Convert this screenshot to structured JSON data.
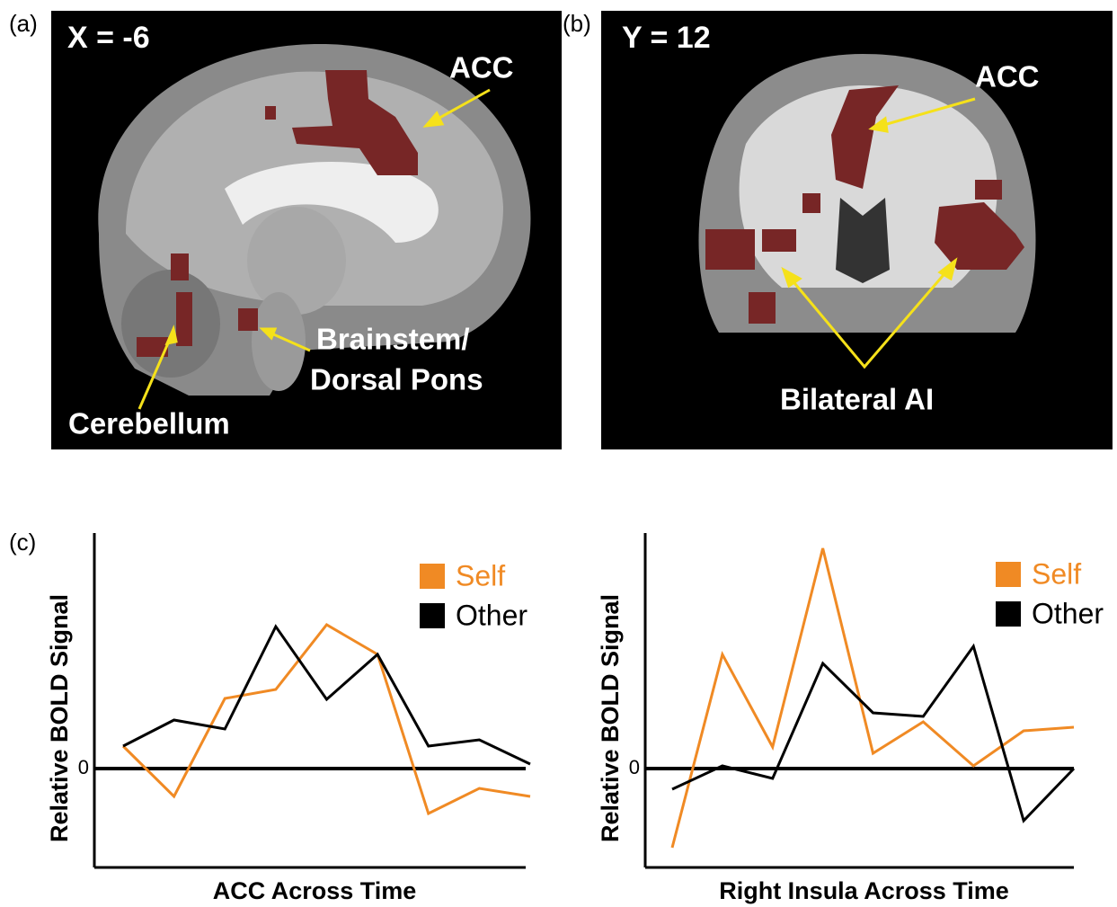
{
  "panels": [
    {
      "label": "(a)",
      "coordinate": "X = -6",
      "annotations": [
        "ACC",
        "Brainstem/",
        "Dorsal Pons",
        "Cerebellum"
      ]
    },
    {
      "label": "(b)",
      "coordinate": "Y = 12",
      "annotations": [
        "ACC",
        "Bilateral AI"
      ]
    },
    {
      "label": "(c)"
    }
  ],
  "chart_data": [
    {
      "type": "line",
      "x_label": "ACC Across Time",
      "y_label": "Relative BOLD Signal",
      "categories": [
        null,
        null,
        null,
        null,
        null,
        null,
        null,
        null,
        null
      ],
      "ylim": [
        -1.1,
        2.62
      ],
      "yticks": [
        0
      ],
      "series": [
        {
          "name": "Self",
          "color": "#f08a24",
          "values": [
            0.25,
            -0.31,
            0.78,
            0.88,
            1.6,
            1.27,
            -0.5,
            -0.22,
            -0.31
          ]
        },
        {
          "name": "Other",
          "color": "#000000",
          "values": [
            0.25,
            0.54,
            0.44,
            1.58,
            0.77,
            1.27,
            0.25,
            0.32,
            0.05
          ]
        }
      ]
    },
    {
      "type": "line",
      "x_label": "Right Insula Across Time",
      "y_label": "Relative BOLD Signal",
      "categories": [
        null,
        null,
        null,
        null,
        null,
        null,
        null,
        null,
        null
      ],
      "ylim": [
        -1.1,
        2.62
      ],
      "yticks": [
        0
      ],
      "series": [
        {
          "name": "Self",
          "color": "#f08a24",
          "values": [
            -0.88,
            1.27,
            0.24,
            2.45,
            0.17,
            0.52,
            0.03,
            0.42,
            0.46
          ]
        },
        {
          "name": "Other",
          "color": "#000000",
          "values": [
            -0.23,
            0.03,
            -0.11,
            1.17,
            0.62,
            0.58,
            1.36,
            -0.58,
            0
          ]
        }
      ]
    }
  ]
}
